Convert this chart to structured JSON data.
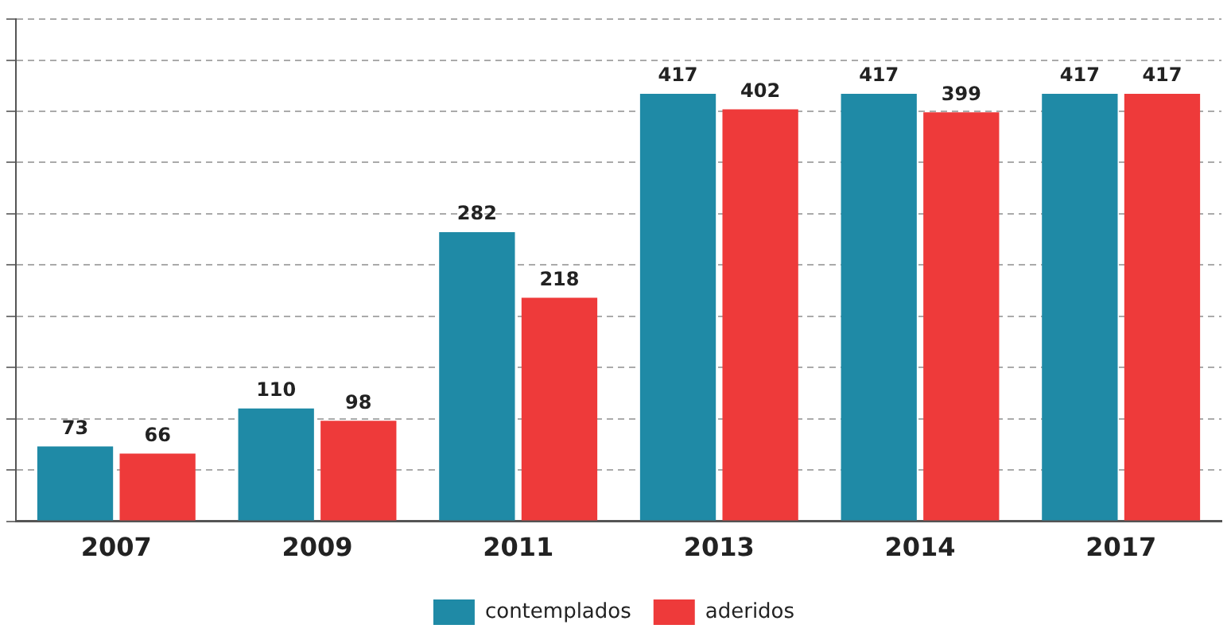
{
  "chart_data": {
    "type": "bar",
    "categories": [
      "2007",
      "2009",
      "2011",
      "2013",
      "2014",
      "2017"
    ],
    "series": [
      {
        "name": "contemplados",
        "color": "#1f8aa6",
        "values": [
          73,
          110,
          282,
          417,
          417,
          417
        ]
      },
      {
        "name": "aderidos",
        "color": "#ee3a3a",
        "values": [
          66,
          98,
          218,
          402,
          399,
          417
        ]
      }
    ],
    "ylim": [
      0,
      490
    ],
    "grid": "y",
    "legend": "bottom",
    "data_labels": true
  }
}
